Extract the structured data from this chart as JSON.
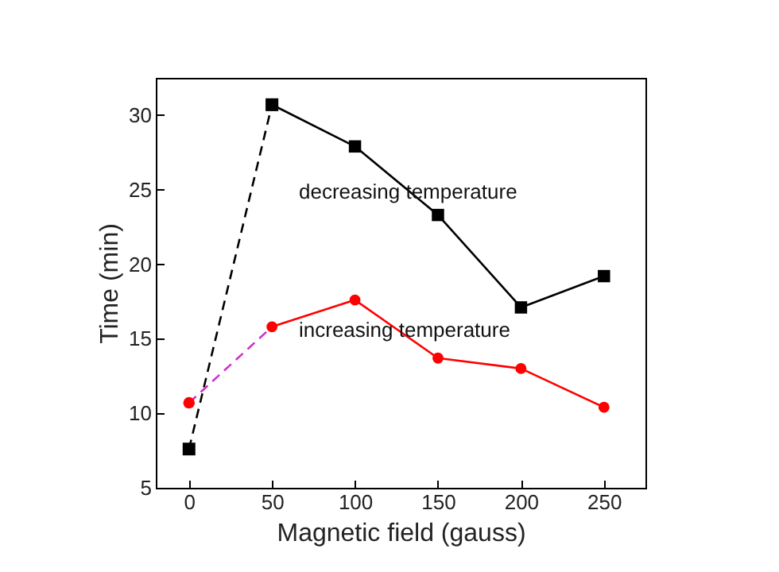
{
  "chart_data": {
    "type": "line",
    "xlabel": "Magnetic field (gauss)",
    "ylabel": "Time (min)",
    "xlim": [
      -20,
      275
    ],
    "xticks": [
      0,
      50,
      100,
      150,
      200,
      250
    ],
    "ylim": [
      5,
      32.5
    ],
    "yticks": [
      5,
      10,
      15,
      20,
      25,
      30
    ],
    "grid": false,
    "series": [
      {
        "color": "#000000",
        "x": [
          0,
          50
        ],
        "values": [
          7.6,
          30.7
        ],
        "marker": "square",
        "line_style": "dashed"
      },
      {
        "color": "#000000",
        "x": [
          50,
          100,
          150,
          200,
          250
        ],
        "values": [
          30.7,
          27.9,
          23.3,
          17.1,
          19.2
        ],
        "marker": "square",
        "line_style": "solid"
      },
      {
        "color": "#cc33cc",
        "x": [
          0,
          50
        ],
        "values": [
          10.7,
          15.8
        ],
        "marker": "none",
        "line_style": "dashed"
      },
      {
        "color": "#ff0000",
        "x": [
          0
        ],
        "values": [
          10.7
        ],
        "type": "scatter",
        "marker": "circle"
      },
      {
        "color": "#ff0000",
        "x": [
          50,
          100,
          150,
          200,
          250
        ],
        "values": [
          15.8,
          17.6,
          13.7,
          13.0,
          10.4
        ],
        "marker": "circle",
        "line_style": "solid"
      }
    ],
    "annotations": [
      "decreasing temperature",
      "increasing temperature"
    ]
  }
}
